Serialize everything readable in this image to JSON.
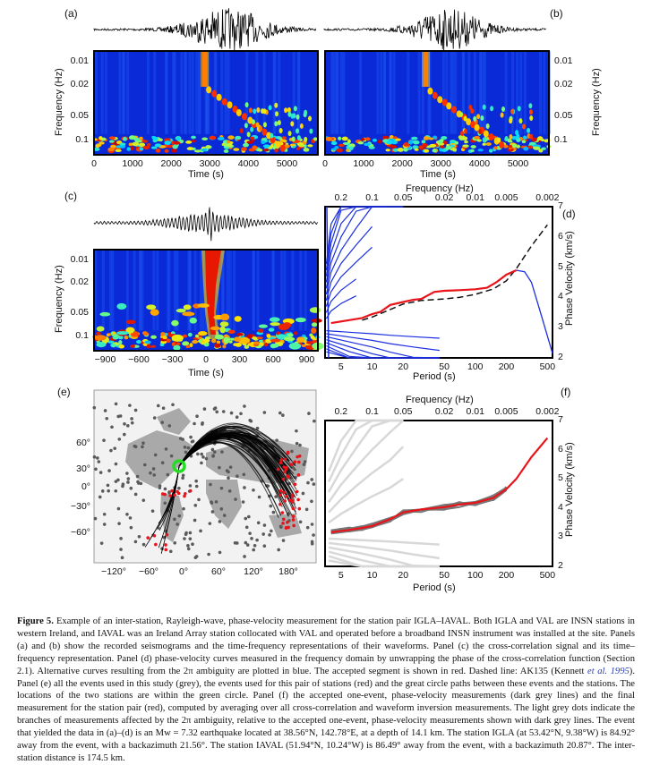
{
  "panels": {
    "a": {
      "label": "(a)",
      "ylabel": "Frequency (Hz)",
      "xlabel": "Time (s)",
      "yticks": [
        "0.01",
        "0.02",
        "0.05",
        "0.1"
      ],
      "xticks": [
        "0",
        "1000",
        "2000",
        "3000",
        "4000",
        "5000"
      ]
    },
    "b": {
      "label": "(b)",
      "ylabel": "Frequency (Hz)",
      "xlabel": "Time (s)",
      "yticks": [
        "0.01",
        "0.02",
        "0.05",
        "0.1"
      ],
      "xticks": [
        "0",
        "1000",
        "2000",
        "3000",
        "4000",
        "5000"
      ]
    },
    "c": {
      "label": "(c)",
      "ylabel": "Frequency (Hz)",
      "xlabel": "Time (s)",
      "yticks": [
        "0.01",
        "0.02",
        "0.05",
        "0.1"
      ],
      "xticks": [
        "−900",
        "−600",
        "−300",
        "0",
        "300",
        "600",
        "900"
      ]
    },
    "d": {
      "label": "(d)",
      "top_xlabel": "Frequency (Hz)",
      "top_xticks": [
        "0.2",
        "0.1",
        "0.05",
        "0.02",
        "0.01",
        "0.005",
        "0.002"
      ],
      "xlabel": "Period (s)",
      "xticks": [
        "5",
        "10",
        "20",
        "50",
        "100",
        "200",
        "500"
      ],
      "ylabel": "Phase Velocity (km/s)",
      "yticks": [
        "2",
        "3",
        "4",
        "5",
        "6",
        "7"
      ]
    },
    "e": {
      "label": "(e)",
      "yticks": [
        "60°",
        "30°",
        "0°",
        "−30°",
        "−60°"
      ],
      "xticks": [
        "−120°",
        "−60°",
        "0°",
        "60°",
        "120°",
        "180°"
      ]
    },
    "f": {
      "label": "(f)",
      "top_xlabel": "Frequency (Hz)",
      "top_xticks": [
        "0.2",
        "0.1",
        "0.05",
        "0.02",
        "0.01",
        "0.005",
        "0.002"
      ],
      "xlabel": "Period (s)",
      "xticks": [
        "5",
        "10",
        "20",
        "50",
        "100",
        "200",
        "500"
      ],
      "ylabel": "Phase Velocity (km/s)",
      "yticks": [
        "2",
        "3",
        "4",
        "5",
        "6",
        "7"
      ]
    }
  },
  "colors": {
    "accepted": "#e8141a",
    "alternative": "#1a2ee0",
    "reference": "#111111",
    "one_event": "#777777",
    "station_circle": "#22dd22"
  },
  "chart_data": [
    {
      "type": "line",
      "panel": "d",
      "title": "",
      "xlabel": "Period (s)",
      "ylabel": "Phase Velocity (km/s)",
      "xscale": "log",
      "xlim": [
        3.5,
        560
      ],
      "ylim": [
        2,
        7
      ],
      "series": [
        {
          "name": "Accepted segment (red)",
          "x": [
            4,
            6,
            8,
            10,
            12,
            15,
            20,
            25,
            30,
            40,
            50,
            70,
            100,
            130,
            160,
            200,
            250
          ],
          "y": [
            3.15,
            3.25,
            3.32,
            3.45,
            3.52,
            3.75,
            3.85,
            3.92,
            3.95,
            4.18,
            4.22,
            4.24,
            4.27,
            4.32,
            4.5,
            4.75,
            4.9
          ]
        },
        {
          "name": "AK135 (dashed)",
          "x": [
            8,
            10,
            15,
            20,
            30,
            50,
            70,
            100,
            150,
            200,
            250,
            350,
            500
          ],
          "y": [
            3.25,
            3.35,
            3.6,
            3.78,
            3.9,
            3.95,
            4.0,
            4.1,
            4.28,
            4.55,
            4.95,
            5.7,
            6.4
          ]
        },
        {
          "name": "Alternative branch long-period (blue)",
          "x": [
            250,
            300,
            350,
            420,
            560
          ],
          "y": [
            4.9,
            4.85,
            4.5,
            3.6,
            2.15
          ]
        },
        {
          "name": "Alternative branches (blue)",
          "note": "2π-ambiguity branches fanning above and below the accepted curve at short periods"
        }
      ]
    },
    {
      "type": "line",
      "panel": "f",
      "xlabel": "Period (s)",
      "ylabel": "Phase Velocity (km/s)",
      "xscale": "log",
      "xlim": [
        3.5,
        560
      ],
      "ylim": [
        2,
        7
      ],
      "series": [
        {
          "name": "Final measurement (red)",
          "x": [
            4,
            6,
            8,
            10,
            15,
            20,
            30,
            50,
            70,
            100,
            150,
            200,
            250,
            350,
            500
          ],
          "y": [
            3.17,
            3.25,
            3.32,
            3.38,
            3.62,
            3.85,
            3.95,
            4.03,
            4.12,
            4.18,
            4.35,
            4.65,
            5.0,
            5.75,
            6.4
          ]
        },
        {
          "name": "One-event measurements (dark grey)",
          "note": "band around red curve from ~4 s to ~160 s"
        },
        {
          "name": "2π-ambiguity branches (light grey dots)",
          "note": "faint branches above and below"
        }
      ]
    }
  ],
  "caption": {
    "fig_label": "Figure 5.",
    "text1": " Example of an inter-station, Rayleigh-wave, phase-velocity measurement for the station pair IGLA–IAVAL. Both IGLA and VAL are INSN stations in western Ireland, and IAVAL was an Ireland Array station collocated with VAL and operated before a broadband INSN instrument was installed at the site. Panels (a) and (b) show the recorded seismograms and the time-frequency representations of their waveforms. Panel (c) the cross-correlation signal and its time–frequency representation. Panel (d) phase-velocity curves measured in the frequency domain by unwrapping the phase of the cross-correlation function (Section 2.1). Alternative curves resulting from the 2π ambiguity are plotted in blue. The accepted segment is shown in red. Dashed line: AK135 (Kennett ",
    "cite": "et al. 1995",
    "text2": "). Panel (e) all the events used in this study (grey), the events used for this pair of stations (red) and the great circle paths between these events and the stations. The locations of the two stations are within the green circle. Panel (f) the accepted one-event, phase-velocity measurements (dark grey lines) and the final measurement for the station pair (red), computed by averaging over all cross-correlation and waveform inversion measurements. The light grey dots indicate the branches of measurements affected by the 2π ambiguity, relative to the accepted one-event, phase-velocity measurements shown with dark grey lines. The event that yielded the data in (a)–(d) is an Mw = 7.32 earthquake located at 38.56°N, 142.78°E, at a depth of 14.1 km. The station IGLA (at 53.42°N, 9.38°W) is 84.92° away from the event, with a backazimuth 21.56°. The station IAVAL (51.94°N, 10.24°W) is 86.49° away from the event, with a backazimuth 20.87°. The inter-station distance is 174.5 km."
  }
}
